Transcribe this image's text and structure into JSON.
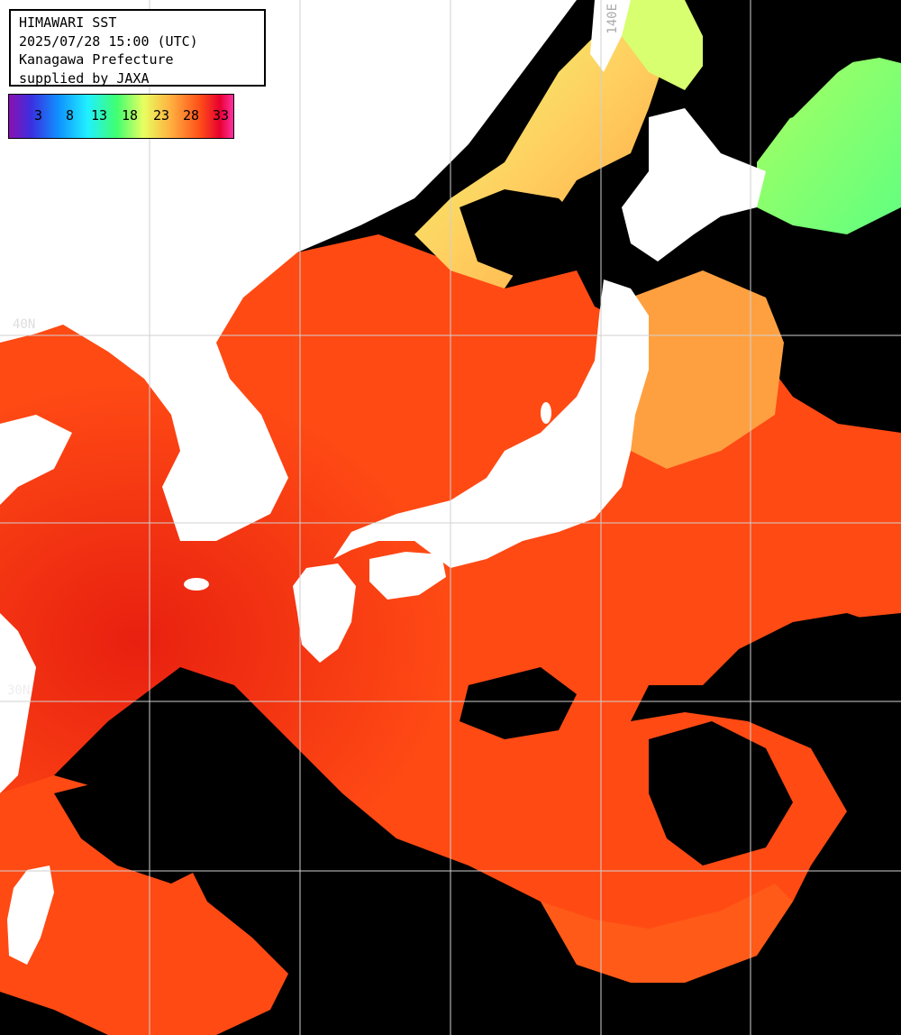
{
  "header": {
    "title": "HIMAWARI SST",
    "datetime": "2025/07/28 15:00 (UTC)",
    "region": "Kanagawa Prefecture",
    "credit": "supplied by JAXA"
  },
  "legend": {
    "ticks": [
      "3",
      "8",
      "13",
      "18",
      "23",
      "28",
      "33"
    ],
    "colors": {
      "cold": "#8a10b0",
      "blue": "#1090ff",
      "cyan": "#20f0ff",
      "green": "#40ff70",
      "yellow": "#e8ff60",
      "orange": "#ffb040",
      "red": "#ff5018",
      "hot": "#e80030"
    }
  },
  "grid_labels": {
    "lat_label": "40N",
    "lon_label": "140E",
    "lat_label_south": "30N"
  },
  "colors": {
    "land": "#ffffff",
    "cloud": "#000000",
    "gridline": "#d0d0d0"
  }
}
